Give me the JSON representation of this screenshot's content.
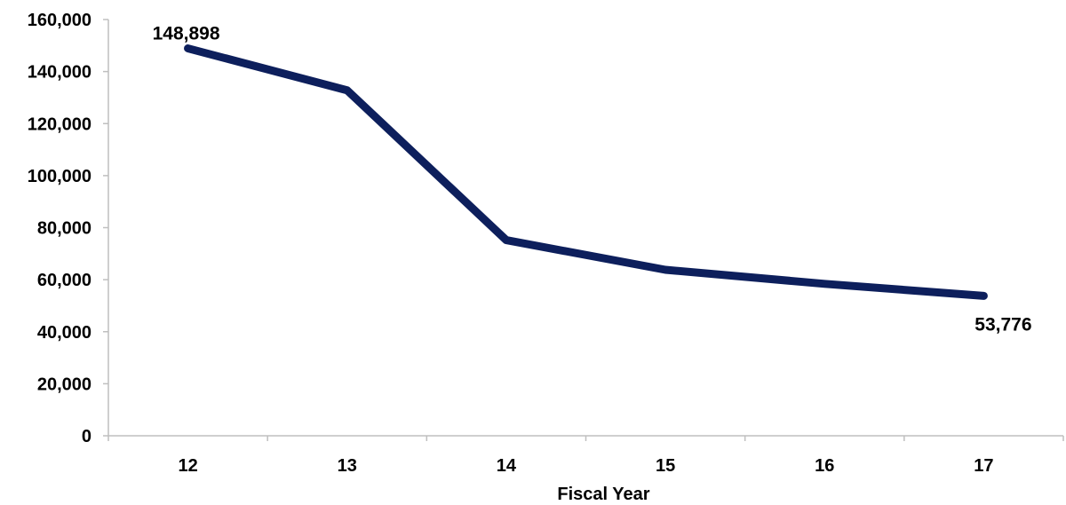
{
  "chart_data": {
    "type": "line",
    "title": "",
    "xlabel": "Fiscal Year",
    "ylabel": "",
    "categories": [
      "12",
      "13",
      "14",
      "15",
      "16",
      "17"
    ],
    "series": [
      {
        "values": [
          148898,
          132800,
          75200,
          63800,
          58400,
          53776
        ]
      }
    ],
    "data_labels": [
      {
        "index": 0,
        "text": "148,898"
      },
      {
        "index": 5,
        "text": "53,776"
      }
    ],
    "y_ticks": [
      "0",
      "20,000",
      "40,000",
      "60,000",
      "80,000",
      "100,000",
      "120,000",
      "140,000",
      "160,000"
    ],
    "ylim": [
      0,
      160000
    ],
    "grid": false,
    "legend": "none",
    "colors": {
      "line": "#0d1f5c",
      "axis": "#bfbfbf",
      "text": "#000000"
    }
  }
}
